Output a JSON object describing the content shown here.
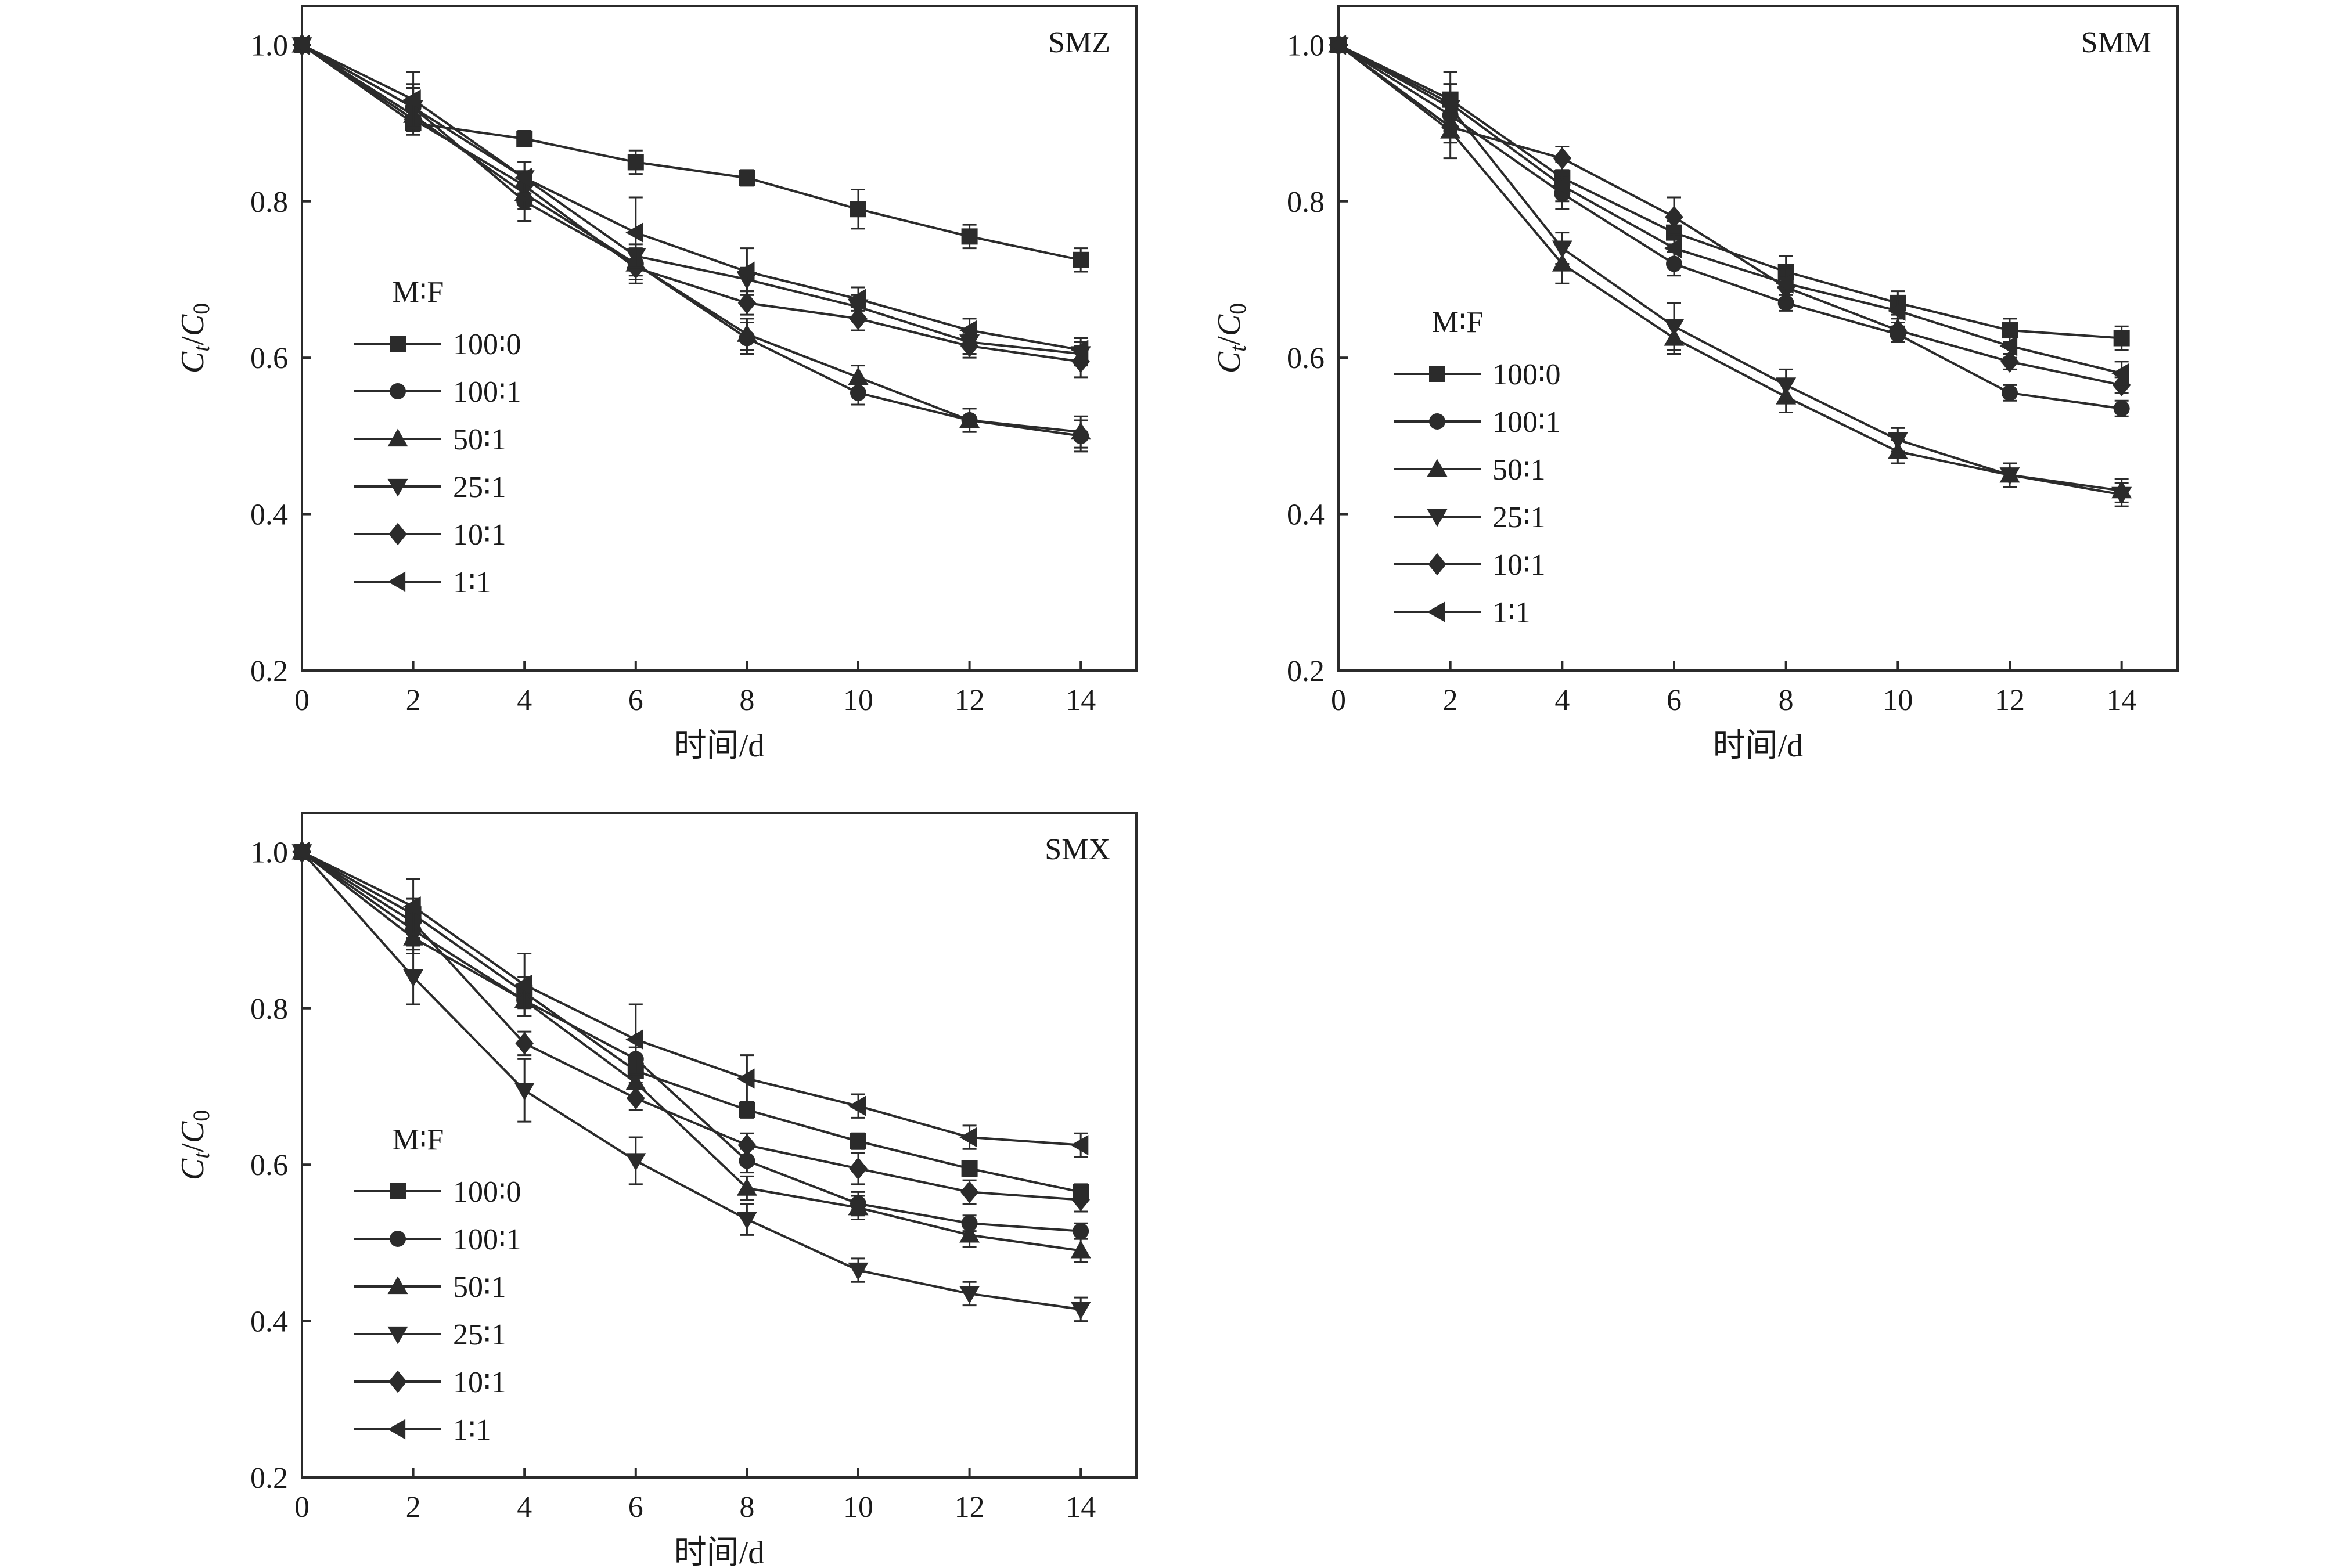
{
  "chart_data": [
    {
      "type": "line",
      "title": "SMZ",
      "xlabel": "时间/d",
      "ylabel": {
        "c1": "C",
        "s1": "t",
        "mid": "/",
        "c2": "C",
        "s2": "0"
      },
      "xlim": [
        0,
        15
      ],
      "ylim": [
        0.2,
        1.05
      ],
      "xticks": [
        0,
        2,
        4,
        6,
        8,
        10,
        12,
        14
      ],
      "yticks": [
        "0.2",
        "0.4",
        "0.6",
        "0.8",
        "1.0"
      ],
      "legend_title": "M∶F",
      "legend_position": "left-middle",
      "x": [
        0,
        2,
        4,
        6,
        8,
        10,
        12,
        14
      ],
      "series": [
        {
          "name": "100∶0",
          "marker": "square",
          "values": [
            1.0,
            0.9,
            0.88,
            0.85,
            0.83,
            0.79,
            0.755,
            0.725
          ],
          "errors": [
            0,
            0.01,
            0.01,
            0.015,
            0.01,
            0.025,
            0.015,
            0.015
          ]
        },
        {
          "name": "100∶1",
          "marker": "circle",
          "values": [
            1.0,
            0.92,
            0.8,
            0.72,
            0.625,
            0.555,
            0.52,
            0.5
          ],
          "errors": [
            0,
            0.025,
            0.025,
            0.015,
            0.02,
            0.015,
            0.015,
            0.02
          ]
        },
        {
          "name": "50∶1",
          "marker": "triangle-up",
          "values": [
            1.0,
            0.91,
            0.81,
            0.72,
            0.63,
            0.575,
            0.52,
            0.505
          ],
          "errors": [
            0,
            0.02,
            0.02,
            0.02,
            0.02,
            0.015,
            0.015,
            0.02
          ]
        },
        {
          "name": "25∶1",
          "marker": "triangle-down",
          "values": [
            1.0,
            0.92,
            0.83,
            0.73,
            0.7,
            0.665,
            0.62,
            0.605
          ],
          "errors": [
            0,
            0.03,
            0.02,
            0.015,
            0.015,
            0.015,
            0.015,
            0.015
          ]
        },
        {
          "name": "10∶1",
          "marker": "diamond",
          "values": [
            1.0,
            0.905,
            0.82,
            0.715,
            0.67,
            0.65,
            0.615,
            0.595
          ],
          "errors": [
            0,
            0.02,
            0.015,
            0.02,
            0.015,
            0.015,
            0.015,
            0.02
          ]
        },
        {
          "name": "1∶1",
          "marker": "triangle-left",
          "values": [
            1.0,
            0.93,
            0.83,
            0.76,
            0.71,
            0.675,
            0.635,
            0.61
          ],
          "errors": [
            0,
            0.035,
            0.02,
            0.045,
            0.03,
            0.015,
            0.015,
            0.015
          ]
        }
      ]
    },
    {
      "type": "line",
      "title": "SMM",
      "xlabel": "时间/d",
      "ylabel": {
        "c1": "C",
        "s1": "t",
        "mid": "/",
        "c2": "C",
        "s2": "0"
      },
      "xlim": [
        0,
        15
      ],
      "ylim": [
        0.2,
        1.05
      ],
      "xticks": [
        0,
        2,
        4,
        6,
        8,
        10,
        12,
        14
      ],
      "yticks": [
        "0.2",
        "0.4",
        "0.6",
        "0.8",
        "1.0"
      ],
      "legend_title": "M∶F",
      "legend_position": "left-middle",
      "x": [
        0,
        2,
        4,
        6,
        8,
        10,
        12,
        14
      ],
      "series": [
        {
          "name": "100∶0",
          "marker": "square",
          "values": [
            1.0,
            0.93,
            0.83,
            0.76,
            0.71,
            0.67,
            0.635,
            0.625
          ],
          "errors": [
            0,
            0.02,
            0.02,
            0.015,
            0.02,
            0.015,
            0.015,
            0.015
          ]
        },
        {
          "name": "100∶1",
          "marker": "circle",
          "values": [
            1.0,
            0.91,
            0.81,
            0.72,
            0.67,
            0.63,
            0.555,
            0.535
          ],
          "errors": [
            0,
            0.02,
            0.02,
            0.015,
            0.01,
            0.01,
            0.01,
            0.01
          ]
        },
        {
          "name": "50∶1",
          "marker": "triangle-up",
          "values": [
            1.0,
            0.89,
            0.72,
            0.625,
            0.55,
            0.48,
            0.45,
            0.43
          ],
          "errors": [
            0,
            0.035,
            0.025,
            0.02,
            0.02,
            0.015,
            0.015,
            0.015
          ]
        },
        {
          "name": "25∶1",
          "marker": "triangle-down",
          "values": [
            1.0,
            0.92,
            0.74,
            0.64,
            0.565,
            0.495,
            0.45,
            0.425
          ],
          "errors": [
            0,
            0.03,
            0.02,
            0.03,
            0.02,
            0.015,
            0.015,
            0.015
          ]
        },
        {
          "name": "10∶1",
          "marker": "diamond",
          "values": [
            1.0,
            0.895,
            0.855,
            0.78,
            0.69,
            0.635,
            0.595,
            0.565
          ],
          "errors": [
            0,
            0.02,
            0.015,
            0.025,
            0.015,
            0.015,
            0.01,
            0.01
          ]
        },
        {
          "name": "1∶1",
          "marker": "triangle-left",
          "values": [
            1.0,
            0.925,
            0.82,
            0.74,
            0.695,
            0.66,
            0.615,
            0.58
          ],
          "errors": [
            0,
            0.04,
            0.02,
            0.02,
            0.02,
            0.015,
            0.015,
            0.015
          ]
        }
      ]
    },
    {
      "type": "line",
      "title": "SMX",
      "xlabel": "时间/d",
      "ylabel": {
        "c1": "C",
        "s1": "t",
        "mid": "/",
        "c2": "C",
        "s2": "0"
      },
      "xlim": [
        0,
        15
      ],
      "ylim": [
        0.2,
        1.05
      ],
      "xticks": [
        0,
        2,
        4,
        6,
        8,
        10,
        12,
        14
      ],
      "yticks": [
        "0.2",
        "0.4",
        "0.6",
        "0.8",
        "1.0"
      ],
      "legend_title": "M∶F",
      "legend_position": "left-bottom",
      "x": [
        0,
        2,
        4,
        6,
        8,
        10,
        12,
        14
      ],
      "series": [
        {
          "name": "100∶0",
          "marker": "square",
          "values": [
            1.0,
            0.92,
            0.82,
            0.72,
            0.67,
            0.63,
            0.595,
            0.565
          ],
          "errors": [
            0,
            0.02,
            0.02,
            0.015,
            0.01,
            0.01,
            0.01,
            0.01
          ]
        },
        {
          "name": "100∶1",
          "marker": "circle",
          "values": [
            1.0,
            0.9,
            0.81,
            0.735,
            0.605,
            0.55,
            0.525,
            0.515
          ],
          "errors": [
            0,
            0.02,
            0.02,
            0.015,
            0.015,
            0.015,
            0.01,
            0.01
          ]
        },
        {
          "name": "50∶1",
          "marker": "triangle-up",
          "values": [
            1.0,
            0.89,
            0.81,
            0.705,
            0.57,
            0.545,
            0.51,
            0.49
          ],
          "errors": [
            0,
            0.02,
            0.02,
            0.02,
            0.015,
            0.015,
            0.015,
            0.015
          ]
        },
        {
          "name": "25∶1",
          "marker": "triangle-down",
          "values": [
            1.0,
            0.84,
            0.695,
            0.605,
            0.53,
            0.465,
            0.435,
            0.415
          ],
          "errors": [
            0,
            0.035,
            0.04,
            0.03,
            0.02,
            0.015,
            0.015,
            0.015
          ]
        },
        {
          "name": "10∶1",
          "marker": "diamond",
          "values": [
            1.0,
            0.91,
            0.755,
            0.685,
            0.625,
            0.595,
            0.565,
            0.555
          ],
          "errors": [
            0,
            0.02,
            0.015,
            0.015,
            0.015,
            0.02,
            0.015,
            0.015
          ]
        },
        {
          "name": "1∶1",
          "marker": "triangle-left",
          "values": [
            1.0,
            0.93,
            0.83,
            0.76,
            0.71,
            0.675,
            0.635,
            0.625
          ],
          "errors": [
            0,
            0.035,
            0.04,
            0.045,
            0.03,
            0.015,
            0.015,
            0.015
          ]
        }
      ]
    }
  ]
}
